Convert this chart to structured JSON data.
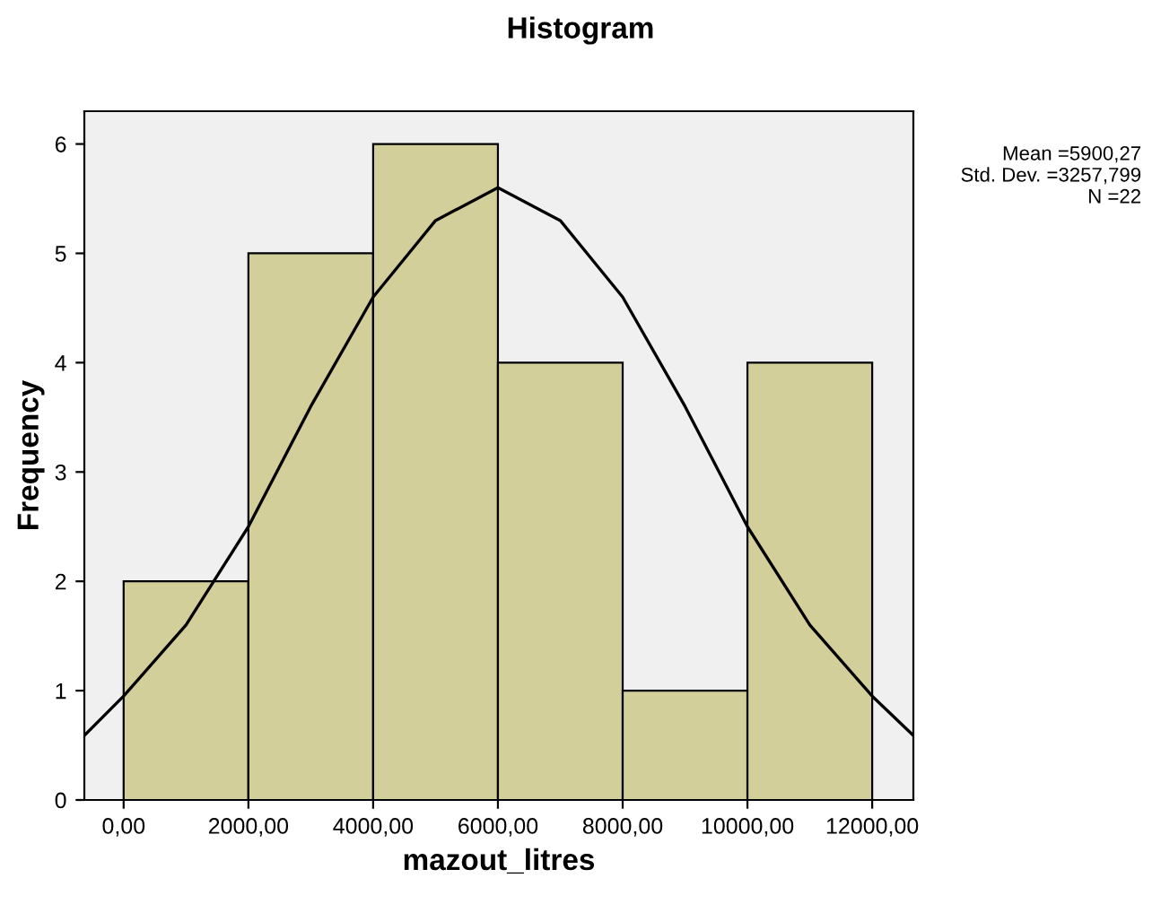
{
  "chart_data": {
    "type": "histogram",
    "title": "Histogram",
    "xlabel": "mazout_litres",
    "ylabel": "Frequency",
    "bins": [
      0,
      2000,
      4000,
      6000,
      8000,
      10000,
      12000
    ],
    "values": [
      2,
      5,
      6,
      4,
      1,
      4
    ],
    "color": "#d3cf9b",
    "xlim": [
      -630,
      12660
    ],
    "ylim": [
      0,
      6.3
    ],
    "xticks": [
      {
        "value": 0,
        "label": "0,00"
      },
      {
        "value": 2000,
        "label": "2000,00"
      },
      {
        "value": 4000,
        "label": "4000,00"
      },
      {
        "value": 6000,
        "label": "6000,00"
      },
      {
        "value": 8000,
        "label": "8000,00"
      },
      {
        "value": 10000,
        "label": "10000,00"
      },
      {
        "value": 12000,
        "label": "12000,00"
      }
    ],
    "yticks": [
      0,
      1,
      2,
      3,
      4,
      5,
      6
    ],
    "grid": false,
    "legend": false,
    "series": [
      {
        "type": "line",
        "color": "#000000",
        "x": [
          -630,
          0,
          1000,
          2000,
          3000,
          4000,
          5000,
          6000,
          7000,
          8000,
          9000,
          10000,
          11000,
          12000,
          12660
        ],
        "values": [
          0.59,
          0.95,
          1.6,
          2.5,
          3.6,
          4.6,
          5.3,
          5.6,
          5.3,
          4.6,
          3.6,
          2.5,
          1.6,
          0.95,
          0.59
        ]
      }
    ],
    "annotations": [
      "Mean =5900,27",
      "Std. Dev. =3257,799",
      "N =22"
    ]
  }
}
